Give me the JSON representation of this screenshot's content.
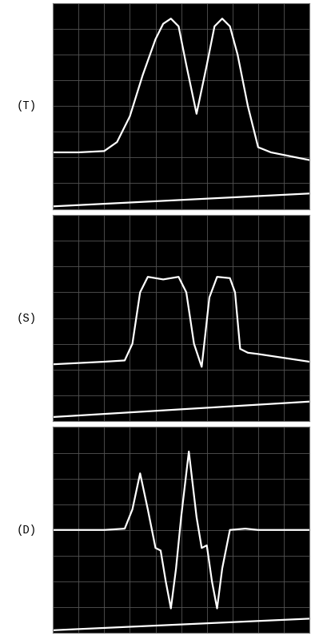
{
  "chart_data": [
    {
      "type": "line",
      "ylabel": "(T)",
      "xlim": [
        0,
        10
      ],
      "ylim": [
        0,
        8
      ],
      "xticks": [
        0,
        1,
        2,
        3,
        4,
        5,
        6,
        7,
        8,
        9,
        10
      ],
      "yticks": [
        0,
        1,
        2,
        3,
        4,
        5,
        6,
        7,
        8
      ],
      "grid": true,
      "tick_labels": false,
      "series": [
        {
          "color": "#ffffff",
          "x": [
            0,
            1,
            2,
            2.5,
            3,
            3.5,
            4,
            4.3,
            4.6,
            4.9,
            5.2,
            5.6,
            6.0,
            6.3,
            6.6,
            6.9,
            7.2,
            7.6,
            8.0,
            8.5,
            9,
            10
          ],
          "values": [
            2.2,
            2.2,
            2.25,
            2.6,
            3.6,
            5.2,
            6.6,
            7.2,
            7.4,
            7.1,
            5.6,
            3.7,
            5.6,
            7.1,
            7.4,
            7.1,
            6.0,
            4.0,
            2.4,
            2.2,
            2.1,
            1.9
          ]
        },
        {
          "color": "#ffffff",
          "x": [
            0,
            10
          ],
          "values": [
            0.1,
            0.6
          ]
        }
      ]
    },
    {
      "type": "line",
      "ylabel": "(S)",
      "xlim": [
        0,
        10
      ],
      "ylim": [
        0,
        8
      ],
      "xticks": [
        0,
        1,
        2,
        3,
        4,
        5,
        6,
        7,
        8,
        9,
        10
      ],
      "yticks": [
        0,
        1,
        2,
        3,
        4,
        5,
        6,
        7,
        8
      ],
      "grid": true,
      "tick_labels": false,
      "series": [
        {
          "color": "#ffffff",
          "x": [
            0,
            1,
            2,
            2.8,
            3.1,
            3.4,
            3.7,
            4.3,
            4.9,
            5.2,
            5.5,
            5.8,
            6.1,
            6.4,
            6.9,
            7.1,
            7.3,
            7.6,
            8,
            9,
            10
          ],
          "values": [
            2.2,
            2.25,
            2.3,
            2.35,
            3.0,
            5.0,
            5.6,
            5.5,
            5.6,
            5.0,
            3.0,
            2.1,
            4.8,
            5.6,
            5.55,
            5.0,
            2.8,
            2.65,
            2.6,
            2.45,
            2.3
          ]
        },
        {
          "color": "#ffffff",
          "x": [
            0,
            10
          ],
          "values": [
            0.15,
            0.75
          ]
        }
      ]
    },
    {
      "type": "line",
      "ylabel": "(D)",
      "xlim": [
        0,
        10
      ],
      "ylim": [
        0,
        8
      ],
      "xticks": [
        0,
        1,
        2,
        3,
        4,
        5,
        6,
        7,
        8,
        9,
        10
      ],
      "yticks": [
        0,
        1,
        2,
        3,
        4,
        5,
        6,
        7,
        8
      ],
      "grid": true,
      "tick_labels": false,
      "series": [
        {
          "color": "#ffffff",
          "x": [
            0,
            1,
            2,
            2.8,
            3.1,
            3.4,
            3.7,
            4.0,
            4.2,
            4.4,
            4.6,
            4.8,
            5.0,
            5.3,
            5.6,
            5.8,
            6.0,
            6.2,
            6.4,
            6.6,
            6.9,
            7.5,
            8,
            9,
            10
          ],
          "values": [
            4.0,
            4.0,
            4.0,
            4.05,
            4.8,
            6.2,
            4.8,
            3.3,
            3.2,
            2.0,
            0.95,
            2.5,
            4.5,
            7.05,
            4.5,
            3.3,
            3.4,
            2.0,
            0.95,
            2.5,
            4.0,
            4.05,
            4.0,
            4.0,
            4.0
          ]
        },
        {
          "color": "#ffffff",
          "x": [
            0,
            10
          ],
          "values": [
            0.1,
            0.55
          ]
        }
      ]
    }
  ]
}
